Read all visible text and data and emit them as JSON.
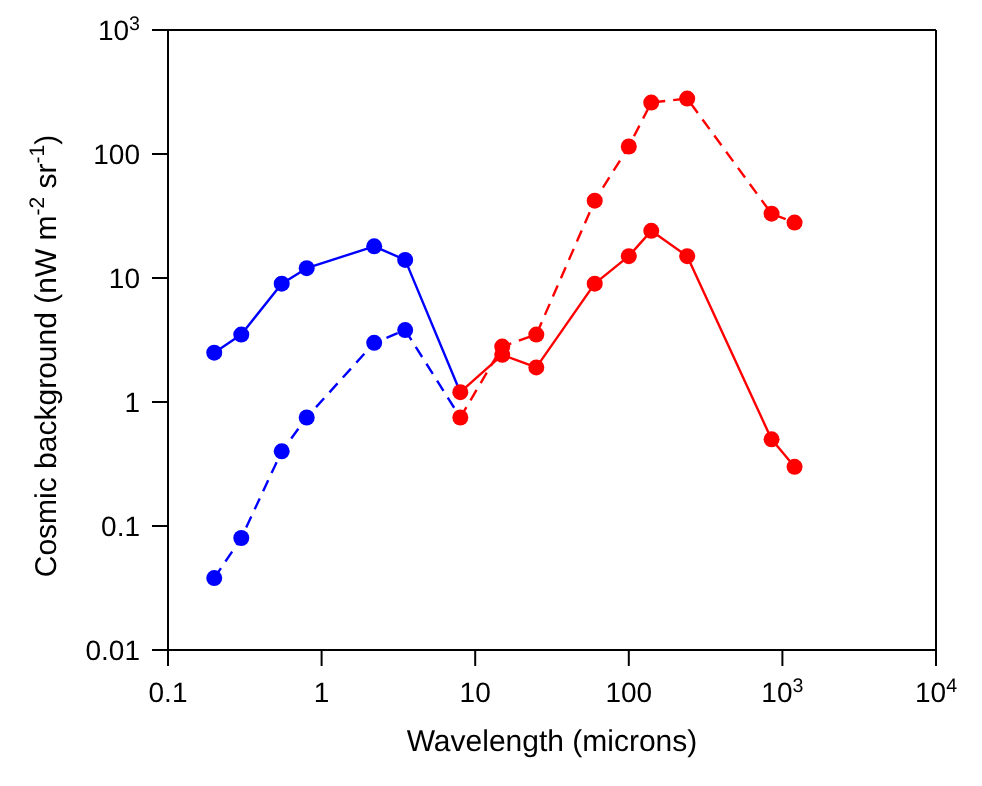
{
  "chart_data": {
    "type": "line",
    "xlabel": "Wavelength (microns)",
    "ylabel": "Cosmic background (nW m$^{-2}$ sr$^{-1}$)",
    "log": "xy",
    "grid": false,
    "marker": "circle",
    "xlim": [
      0.1,
      10000
    ],
    "ylim": [
      0.01,
      1000
    ],
    "xticks": [
      0.1,
      1,
      10,
      100,
      {
        "value": 1000,
        "label": "10$^{3}$"
      },
      {
        "value": 10000,
        "label": "10$^{4}$"
      }
    ],
    "yticks": [
      0.01,
      0.1,
      1,
      10,
      100,
      {
        "value": 1000,
        "label": "10$^{3}$"
      }
    ],
    "series": [
      {
        "color": "#0000ff",
        "line_style": "solid",
        "x": [
          0.2,
          0.3,
          0.55,
          0.8,
          2.2,
          3.5,
          8
        ],
        "values": [
          2.5,
          3.5,
          9,
          12,
          18,
          14,
          1.2
        ]
      },
      {
        "color": "#0000ff",
        "line_style": "dashed",
        "x": [
          0.2,
          0.3,
          0.55,
          0.8,
          2.2,
          3.5,
          8
        ],
        "values": [
          0.038,
          0.08,
          0.4,
          0.75,
          3.0,
          3.8,
          0.75
        ]
      },
      {
        "color": "#ff0000",
        "line_style": "solid",
        "x": [
          8,
          15,
          25,
          60,
          100,
          140,
          240,
          850,
          1200
        ],
        "values": [
          1.2,
          2.4,
          1.9,
          9,
          15,
          24,
          15,
          0.5,
          0.3
        ]
      },
      {
        "color": "#ff0000",
        "line_style": "dashed",
        "x": [
          8,
          15,
          25,
          60,
          100,
          140,
          240,
          850,
          1200
        ],
        "values": [
          0.75,
          2.8,
          3.5,
          42,
          115,
          260,
          280,
          33,
          28
        ]
      }
    ]
  }
}
